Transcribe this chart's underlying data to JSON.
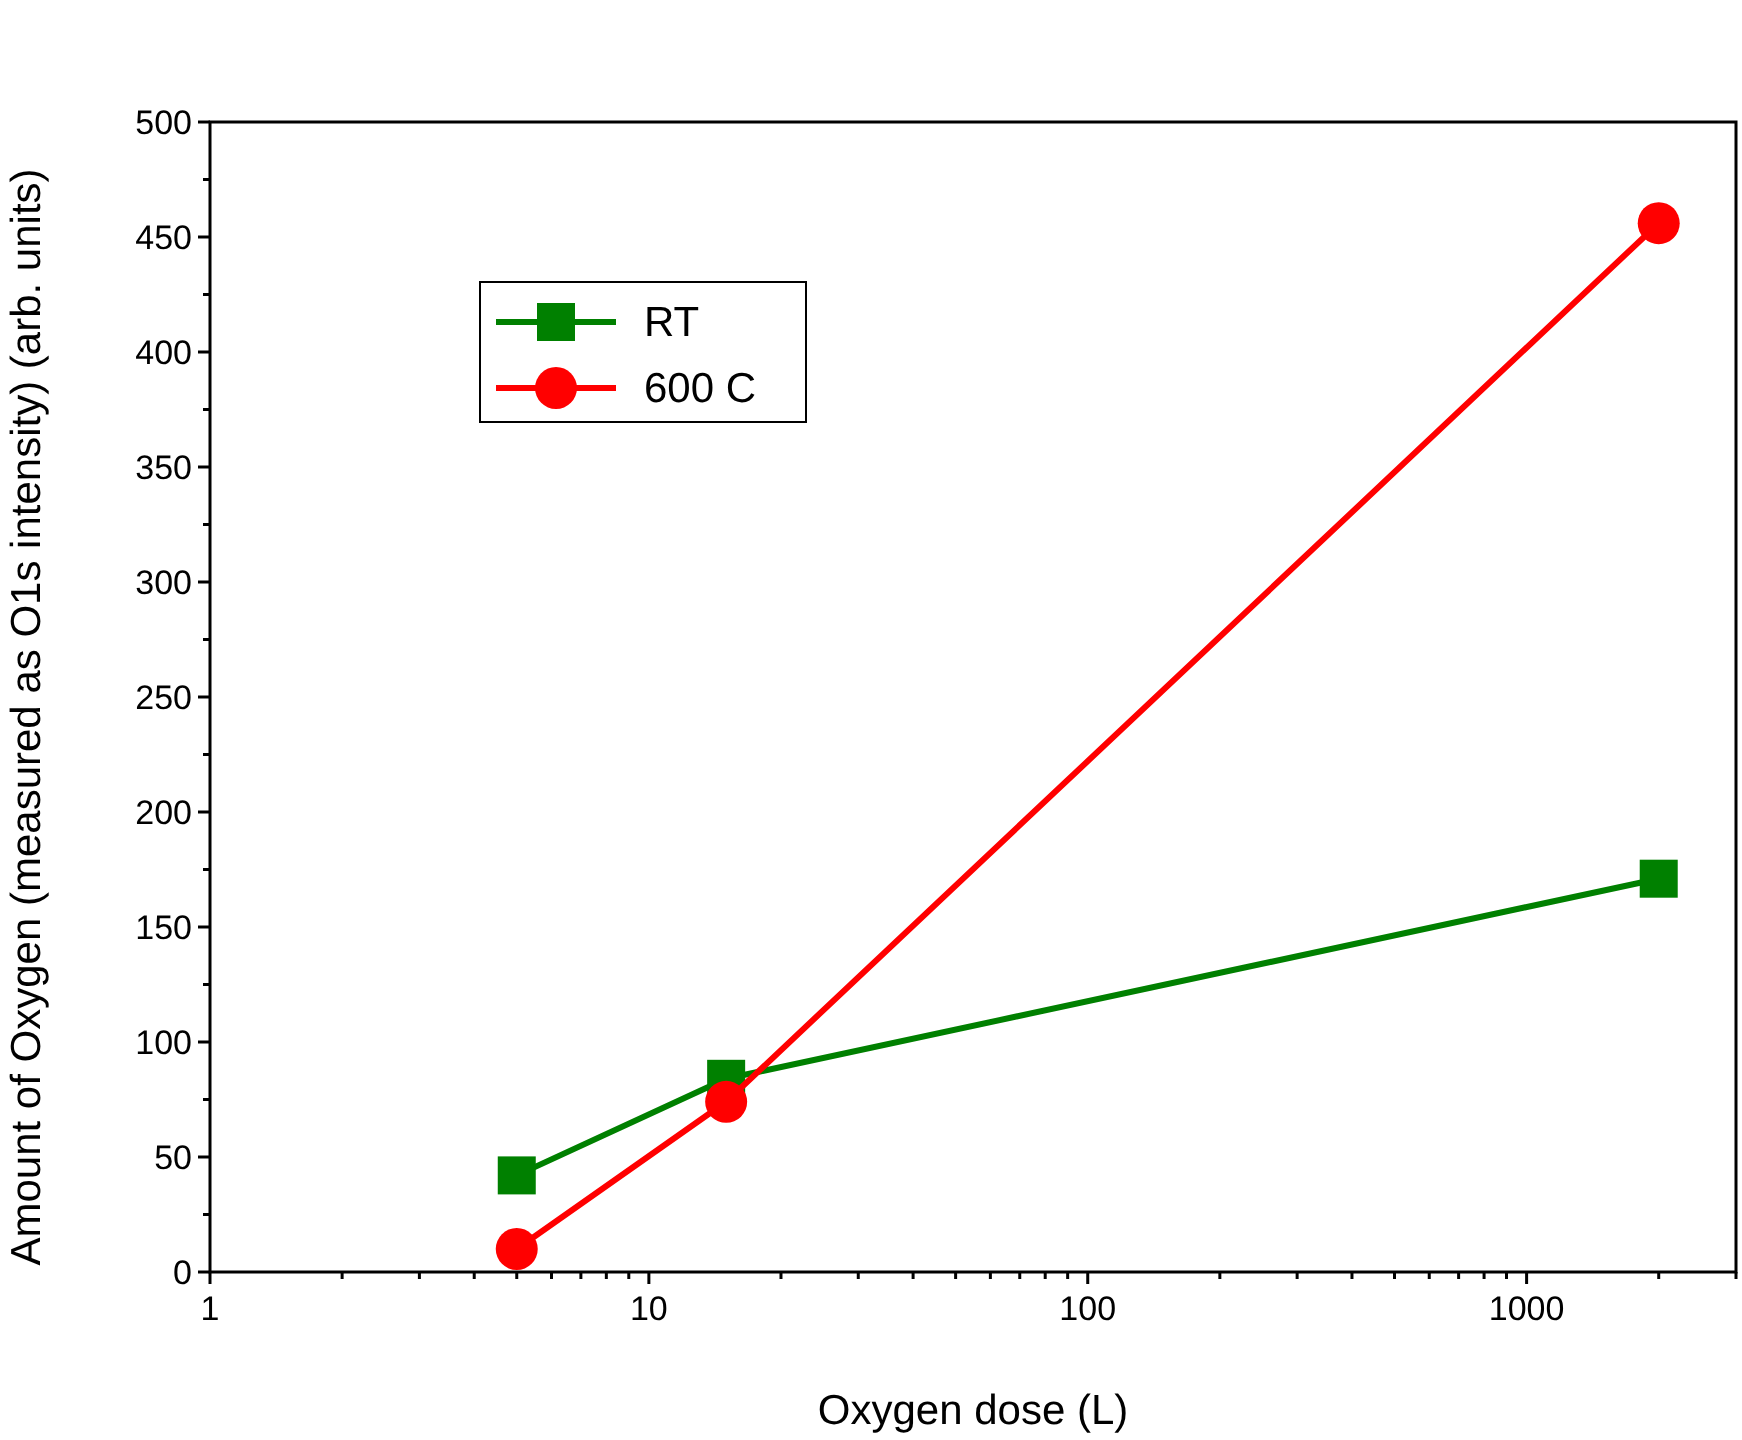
{
  "chart_data": {
    "type": "line",
    "xlabel": "Oxygen dose (L)",
    "ylabel": "Amount of Oxygen (measured as O1s intensity) (arb. units)",
    "log": "x",
    "xlim": [
      1,
      3000
    ],
    "ylim": [
      0,
      500
    ],
    "xticks": [
      1,
      {
        "value": 2,
        "label": null
      },
      {
        "value": 3,
        "label": null
      },
      {
        "value": 4,
        "label": null
      },
      {
        "value": 5,
        "label": null
      },
      {
        "value": 6,
        "label": null
      },
      {
        "value": 7,
        "label": null
      },
      {
        "value": 8,
        "label": null
      },
      {
        "value": 9,
        "label": null
      },
      10,
      {
        "value": 20,
        "label": null
      },
      {
        "value": 30,
        "label": null
      },
      {
        "value": 40,
        "label": null
      },
      {
        "value": 50,
        "label": null
      },
      {
        "value": 60,
        "label": null
      },
      {
        "value": 70,
        "label": null
      },
      {
        "value": 80,
        "label": null
      },
      {
        "value": 90,
        "label": null
      },
      100,
      {
        "value": 200,
        "label": null
      },
      {
        "value": 300,
        "label": null
      },
      {
        "value": 400,
        "label": null
      },
      {
        "value": 500,
        "label": null
      },
      {
        "value": 600,
        "label": null
      },
      {
        "value": 700,
        "label": null
      },
      {
        "value": 800,
        "label": null
      },
      {
        "value": 900,
        "label": null
      },
      1000,
      {
        "value": 2000,
        "label": null
      },
      {
        "value": 3000,
        "label": null
      }
    ],
    "yticks": [
      0,
      {
        "value": 25,
        "label": null
      },
      50,
      {
        "value": 75,
        "label": null
      },
      100,
      {
        "value": 125,
        "label": null
      },
      150,
      {
        "value": 175,
        "label": null
      },
      200,
      {
        "value": 225,
        "label": null
      },
      250,
      {
        "value": 275,
        "label": null
      },
      300,
      {
        "value": 325,
        "label": null
      },
      350,
      {
        "value": 375,
        "label": null
      },
      400,
      {
        "value": 425,
        "label": null
      },
      450,
      {
        "value": 475,
        "label": null
      },
      500
    ],
    "legend": "top left",
    "x": [
      5,
      15,
      2000
    ],
    "series": [
      {
        "name": "RT",
        "color": "#008000",
        "marker": "square",
        "values": [
          42,
          84,
          171
        ]
      },
      {
        "name": "600 C",
        "color": "#ff0000",
        "marker": "circle",
        "values": [
          10,
          74,
          456
        ]
      }
    ]
  }
}
